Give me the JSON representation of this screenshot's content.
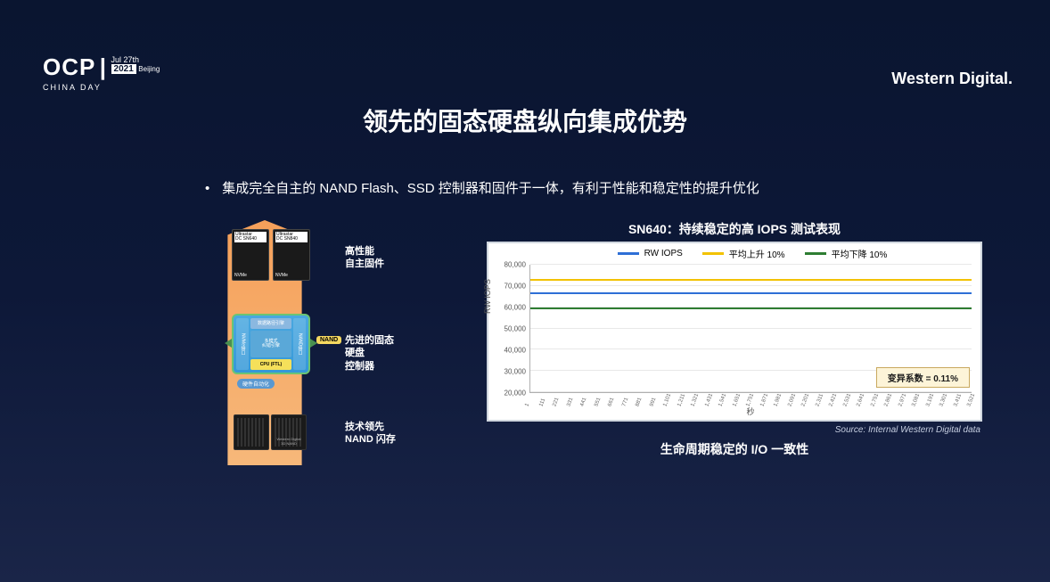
{
  "logo": {
    "ocp": "OCP",
    "date_top": "Jul 27th",
    "year": "2021",
    "city": "Beijing",
    "sub": "CHINA DAY"
  },
  "brand": "Western Digital",
  "title": "领先的固态硬盘纵向集成优势",
  "bullet": "集成完全自主的 NAND Flash、SSD 控制器和固件于一体，有利于性能和稳定性的提升优化",
  "diagram": {
    "ssd1_top": "Western Digital",
    "ssd1_model": "Ultrastar\nDC SN640",
    "ssd2_model": "Ultrastar\nDC SN840",
    "nvme": "NVMe",
    "label1": "高性能\n自主固件",
    "label2": "先进的固态硬盘\n控制器",
    "label3": "技术领先\nNAND 闪存",
    "ctrl_top": "数据路径引擎",
    "ctrl_left": "NVMe接口",
    "ctrl_right": "NAND接口",
    "ctrl_mid": "多模式\n纠错引擎",
    "ctrl_cpu": "CPU (FTL)",
    "hw_auto": "硬件自动化",
    "nand_pill": "NAND",
    "chip_label": "Western Digital\n3D NAND"
  },
  "chart": {
    "title": "SN640：持续稳定的高 IOPS 测试表现",
    "legend": [
      {
        "label": "RW IOPS",
        "color": "#2e6fd6"
      },
      {
        "label": "平均上升 10%",
        "color": "#f2c200"
      },
      {
        "label": "平均下降 10%",
        "color": "#2e7d32"
      }
    ],
    "ylabel": "RW IOPS",
    "ylim": [
      20000,
      80000
    ],
    "ytick_step": 10000,
    "yticks": [
      "20,000",
      "30,000",
      "40,000",
      "50,000",
      "60,000",
      "70,000",
      "80,000"
    ],
    "series": [
      {
        "name": "rw_iops",
        "value": 66000,
        "color": "#2e6fd6"
      },
      {
        "name": "avg_up",
        "value": 72500,
        "color": "#f2c200"
      },
      {
        "name": "avg_down",
        "value": 59000,
        "color": "#2e7d32"
      }
    ],
    "xticks": [
      "1",
      "111",
      "221",
      "331",
      "441",
      "551",
      "661",
      "771",
      "881",
      "991",
      "1,101",
      "1,211",
      "1,321",
      "1,431",
      "1,541",
      "1,651",
      "1,751",
      "1,871",
      "1,981",
      "2,091",
      "2,201",
      "2,311",
      "2,421",
      "2,531",
      "2,641",
      "2,751",
      "2,861",
      "2,971",
      "3,081",
      "3,191",
      "3,301",
      "3,411",
      "3,521"
    ],
    "xlabel": "秒",
    "annotation": "变异系数 = 0.11%",
    "background_color": "#ffffff",
    "grid_color": "#e8e8e8"
  },
  "source": "Source: Internal Western Digital data",
  "subtitle": "生命周期稳定的 I/O 一致性"
}
